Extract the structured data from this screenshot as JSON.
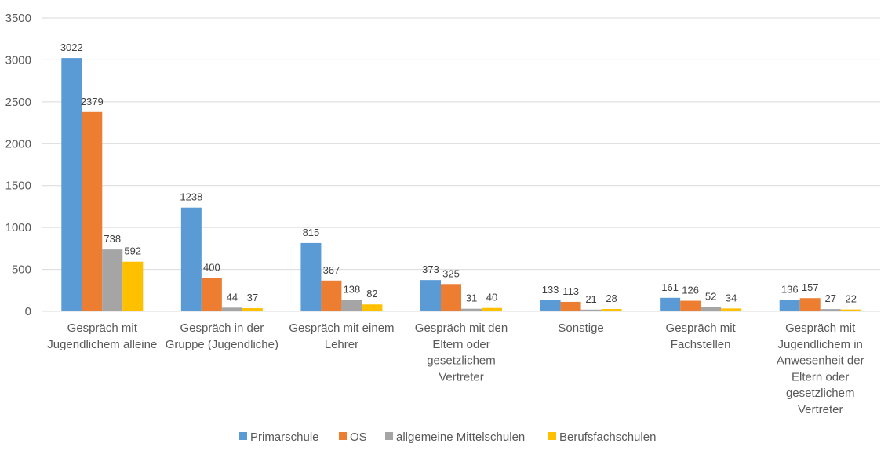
{
  "chart_data": {
    "type": "bar",
    "title": "",
    "xlabel": "",
    "ylabel": "",
    "ylim": [
      0,
      3500
    ],
    "yticks": [
      0,
      500,
      1000,
      1500,
      2000,
      2500,
      3000,
      3500
    ],
    "grid": true,
    "legend_position": "bottom",
    "categories": [
      [
        "Gespräch mit",
        "Jugendlichem alleine"
      ],
      [
        "Gespräch in der",
        "Gruppe (Jugendliche)"
      ],
      [
        "Gespräch mit einem",
        "Lehrer"
      ],
      [
        "Gespräch mit den",
        "Eltern oder",
        "gesetzlichem",
        "Vertreter"
      ],
      [
        "Sonstige"
      ],
      [
        "Gespräch mit",
        "Fachstellen"
      ],
      [
        "Gespräch mit",
        "Jugendlichem in",
        "Anwesenheit der",
        "Eltern oder",
        "gesetzlichem",
        "Vertreter"
      ]
    ],
    "series": [
      {
        "name": "Primarschule",
        "color": "#5b9bd5",
        "values": [
          3022,
          1238,
          815,
          373,
          133,
          161,
          136
        ]
      },
      {
        "name": "OS",
        "color": "#ed7d31",
        "values": [
          2379,
          400,
          367,
          325,
          113,
          126,
          157
        ]
      },
      {
        "name": "allgemeine Mittelschulen",
        "color": "#a5a5a5",
        "values": [
          738,
          44,
          138,
          31,
          21,
          52,
          27
        ]
      },
      {
        "name": "Berufsfachschulen",
        "color": "#ffc000",
        "values": [
          592,
          37,
          82,
          40,
          28,
          34,
          22
        ]
      }
    ]
  }
}
